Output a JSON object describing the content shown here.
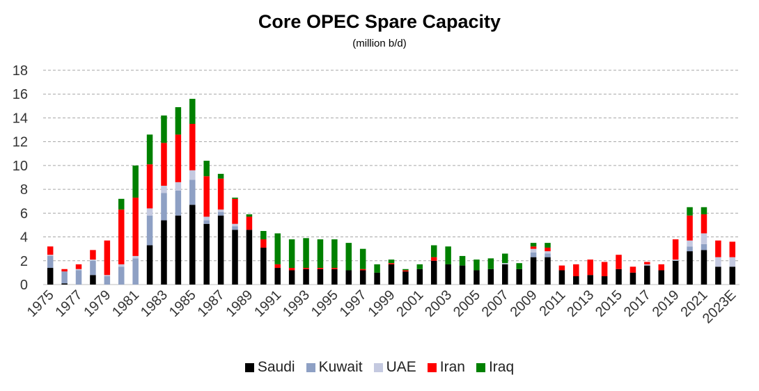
{
  "chart_data": {
    "type": "bar",
    "stacked": true,
    "title": "Core OPEC Spare Capacity",
    "subtitle": "(million b/d)",
    "ylim": [
      0,
      18
    ],
    "yticks": [
      "0",
      "2",
      "4",
      "6",
      "8",
      "10",
      "12",
      "14",
      "16",
      "18"
    ],
    "grid": true,
    "legend_position": "bottom",
    "categories": [
      "1975",
      "1976",
      "1977",
      "1978",
      "1979",
      "1980",
      "1981",
      "1982",
      "1983",
      "1984",
      "1985",
      "1986",
      "1987",
      "1988",
      "1989",
      "1990",
      "1991",
      "1992",
      "1993",
      "1994",
      "1995",
      "1996",
      "1997",
      "1998",
      "1999",
      "2000",
      "2001",
      "2002",
      "2003",
      "2004",
      "2005",
      "2006",
      "2007",
      "2008",
      "2009",
      "2010",
      "2011",
      "2012",
      "2013",
      "2014",
      "2015",
      "2016",
      "2017",
      "2018",
      "2019",
      "2020",
      "2021",
      "2022",
      "2023E"
    ],
    "xtick_labels": [
      "1975",
      "",
      "1977",
      "",
      "1979",
      "",
      "1981",
      "",
      "1983",
      "",
      "1985",
      "",
      "1987",
      "",
      "1989",
      "",
      "1991",
      "",
      "1993",
      "",
      "1995",
      "",
      "1997",
      "",
      "1999",
      "",
      "2001",
      "",
      "2003",
      "",
      "2005",
      "",
      "2007",
      "",
      "2009",
      "",
      "2011",
      "",
      "2013",
      "",
      "2015",
      "",
      "2017",
      "",
      "2019",
      "",
      "2021",
      "",
      "2023E"
    ],
    "series": [
      {
        "name": "Saudi",
        "color": "#000000",
        "values": [
          1.4,
          0.1,
          0.0,
          0.8,
          0.0,
          0.0,
          0.0,
          3.3,
          5.4,
          5.8,
          6.7,
          5.1,
          5.8,
          4.6,
          4.6,
          3.1,
          1.4,
          1.2,
          1.3,
          1.3,
          1.3,
          1.2,
          1.2,
          1.0,
          1.7,
          1.1,
          1.3,
          2.0,
          1.7,
          1.6,
          1.2,
          1.3,
          1.7,
          1.3,
          2.3,
          2.3,
          1.2,
          0.7,
          0.8,
          0.7,
          1.3,
          1.0,
          1.6,
          1.2,
          2.0,
          2.8,
          2.9,
          1.5,
          1.5
        ]
      },
      {
        "name": "Kuwait",
        "color": "#8EA0C4",
        "values": [
          1.0,
          1.0,
          1.2,
          1.2,
          0.7,
          1.5,
          2.2,
          2.5,
          2.3,
          2.1,
          2.1,
          0.3,
          0.3,
          0.3,
          0.0,
          0.0,
          0.0,
          0.0,
          0.0,
          0.0,
          0.0,
          0.0,
          0.0,
          0.0,
          0.0,
          0.0,
          0.0,
          0.0,
          0.0,
          0.0,
          0.0,
          0.0,
          0.0,
          0.0,
          0.4,
          0.3,
          0.0,
          0.0,
          0.0,
          0.0,
          0.0,
          0.0,
          0.0,
          0.0,
          0.0,
          0.4,
          0.5,
          0.0,
          0.0
        ]
      },
      {
        "name": "UAE",
        "color": "#C4C9E0",
        "values": [
          0.1,
          0.0,
          0.1,
          0.1,
          0.1,
          0.2,
          0.2,
          0.6,
          0.6,
          0.7,
          0.8,
          0.3,
          0.2,
          0.2,
          0.0,
          0.0,
          0.0,
          0.0,
          0.0,
          0.0,
          0.0,
          0.0,
          0.0,
          0.0,
          0.0,
          0.0,
          0.0,
          0.0,
          0.0,
          0.0,
          0.0,
          0.0,
          0.1,
          0.0,
          0.3,
          0.2,
          0.0,
          0.0,
          0.0,
          0.0,
          0.0,
          0.0,
          0.1,
          0.0,
          0.1,
          0.5,
          0.9,
          0.8,
          0.8
        ]
      },
      {
        "name": "Iran",
        "color": "#FF0000",
        "values": [
          0.7,
          0.2,
          0.4,
          0.8,
          2.9,
          4.6,
          4.9,
          3.7,
          3.6,
          4.0,
          3.9,
          3.4,
          2.6,
          2.1,
          1.1,
          0.7,
          0.3,
          0.2,
          0.1,
          0.1,
          0.1,
          0.0,
          0.1,
          0.0,
          0.1,
          0.1,
          0.0,
          0.3,
          0.0,
          0.0,
          0.0,
          0.0,
          0.0,
          0.0,
          0.2,
          0.3,
          0.4,
          1.0,
          1.3,
          1.2,
          1.2,
          0.5,
          0.2,
          0.5,
          1.7,
          2.1,
          1.6,
          1.4,
          1.3
        ]
      },
      {
        "name": "Iraq",
        "color": "#008000",
        "values": [
          0.0,
          0.0,
          0.0,
          0.0,
          0.0,
          0.9,
          2.7,
          2.5,
          2.3,
          2.3,
          2.1,
          1.3,
          0.4,
          0.1,
          0.2,
          0.7,
          2.6,
          2.4,
          2.5,
          2.4,
          2.4,
          2.3,
          1.7,
          0.7,
          0.3,
          0.1,
          0.4,
          1.0,
          1.5,
          0.8,
          0.9,
          0.9,
          0.8,
          0.5,
          0.3,
          0.4,
          0.0,
          0.0,
          0.0,
          0.0,
          0.0,
          0.0,
          0.0,
          0.0,
          0.0,
          0.7,
          0.6,
          0.0,
          0.0
        ]
      }
    ]
  }
}
